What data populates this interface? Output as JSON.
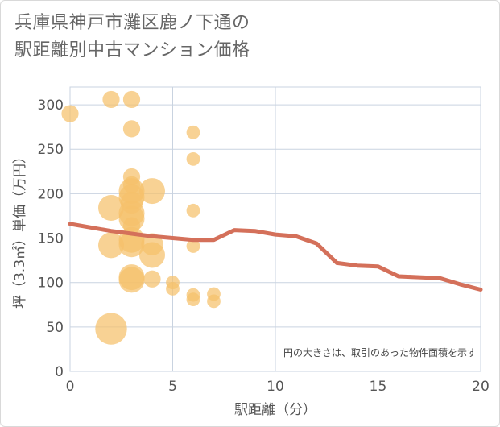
{
  "title_lines": [
    "兵庫県神戸市灘区鹿ノ下通の",
    "駅距離別中古マンション価格"
  ],
  "chart_data": {
    "type": "scatter",
    "xlabel": "駅距離（分）",
    "ylabel": "坪（3.3㎡）単価（万円）",
    "xlim": [
      0,
      20
    ],
    "ylim": [
      0,
      320
    ],
    "xticks": [
      0,
      5,
      10,
      15,
      20
    ],
    "yticks": [
      0,
      50,
      100,
      150,
      200,
      250,
      300
    ],
    "grid": true,
    "annotation": "円の大きさは、取引のあった物件面積を示す",
    "colors": {
      "bubble": "#f5c06b",
      "trend": "#d4705a",
      "grid": "#c9d3e0"
    },
    "bubbles": [
      {
        "x": 0,
        "y": 290,
        "size": 1
      },
      {
        "x": 2,
        "y": 306,
        "size": 1
      },
      {
        "x": 2,
        "y": 184,
        "size": 3
      },
      {
        "x": 2,
        "y": 142,
        "size": 3
      },
      {
        "x": 2,
        "y": 48,
        "size": 5
      },
      {
        "x": 3,
        "y": 306,
        "size": 1
      },
      {
        "x": 3,
        "y": 273,
        "size": 1
      },
      {
        "x": 3,
        "y": 219,
        "size": 1
      },
      {
        "x": 3,
        "y": 210,
        "size": 1
      },
      {
        "x": 3,
        "y": 203,
        "size": 3
      },
      {
        "x": 3,
        "y": 196,
        "size": 3
      },
      {
        "x": 3,
        "y": 190,
        "size": 2
      },
      {
        "x": 3,
        "y": 178,
        "size": 3
      },
      {
        "x": 3,
        "y": 172,
        "size": 3
      },
      {
        "x": 3,
        "y": 164,
        "size": 1
      },
      {
        "x": 3,
        "y": 148,
        "size": 3
      },
      {
        "x": 3,
        "y": 143,
        "size": 3
      },
      {
        "x": 3,
        "y": 106,
        "size": 3
      },
      {
        "x": 3,
        "y": 103,
        "size": 3
      },
      {
        "x": 4,
        "y": 203,
        "size": 3
      },
      {
        "x": 4,
        "y": 143,
        "size": 2
      },
      {
        "x": 4,
        "y": 131,
        "size": 3
      },
      {
        "x": 4,
        "y": 104,
        "size": 1
      },
      {
        "x": 5,
        "y": 100,
        "size": 0.5
      },
      {
        "x": 5,
        "y": 93,
        "size": 0.5
      },
      {
        "x": 6,
        "y": 269,
        "size": 0.5
      },
      {
        "x": 6,
        "y": 239,
        "size": 0.5
      },
      {
        "x": 6,
        "y": 181,
        "size": 0.5
      },
      {
        "x": 6,
        "y": 141,
        "size": 0.5
      },
      {
        "x": 6,
        "y": 86,
        "size": 0.5
      },
      {
        "x": 6,
        "y": 81,
        "size": 0.5
      },
      {
        "x": 7,
        "y": 87,
        "size": 0.5
      },
      {
        "x": 7,
        "y": 79,
        "size": 0.5
      }
    ],
    "trend": {
      "x": [
        0,
        1,
        2,
        3,
        4,
        5,
        6,
        7,
        8,
        9,
        10,
        11,
        12,
        13,
        14,
        15,
        16,
        17,
        18,
        19,
        20
      ],
      "y": [
        166,
        162,
        158,
        155,
        152,
        150,
        148,
        148,
        159,
        158,
        154,
        152,
        144,
        122,
        119,
        118,
        107,
        106,
        105,
        98,
        92
      ]
    }
  }
}
